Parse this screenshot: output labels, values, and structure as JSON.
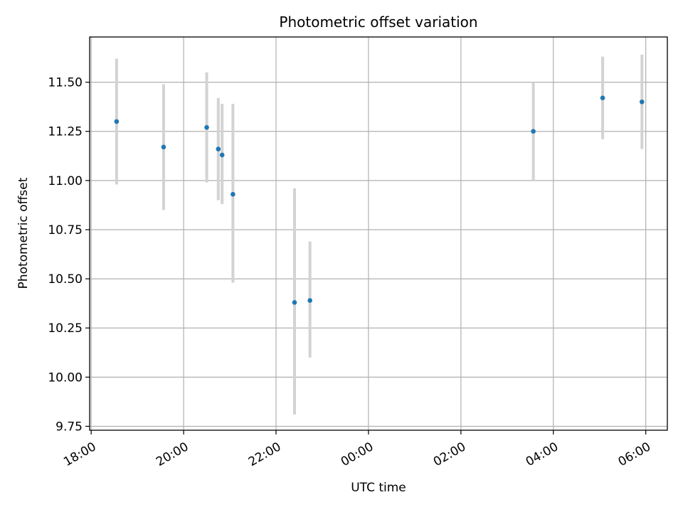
{
  "chart_data": {
    "type": "scatter",
    "title": "Photometric offset variation",
    "xlabel": "UTC time",
    "ylabel": "Photometric offset",
    "x_axis": "time",
    "xlim": [
      "17:58",
      "06:28"
    ],
    "ylim": [
      9.73,
      11.73
    ],
    "x_ticks": [
      "18:00",
      "20:00",
      "22:00",
      "00:00",
      "02:00",
      "04:00",
      "06:00"
    ],
    "y_ticks": [
      "9.75",
      "10.00",
      "10.25",
      "10.50",
      "10.75",
      "11.00",
      "11.25",
      "11.50"
    ],
    "grid": true,
    "x_tick_rotation": "30deg",
    "marker_color": "#1f77b4",
    "errorbar_color": "#d3d3d3",
    "points": [
      {
        "x": "18:33",
        "y": 11.3,
        "err_low": 10.98,
        "err_high": 11.62
      },
      {
        "x": "19:34",
        "y": 11.17,
        "err_low": 10.85,
        "err_high": 11.49
      },
      {
        "x": "20:30",
        "y": 11.27,
        "err_low": 10.99,
        "err_high": 11.55
      },
      {
        "x": "20:45",
        "y": 11.16,
        "err_low": 10.9,
        "err_high": 11.42
      },
      {
        "x": "20:50",
        "y": 11.13,
        "err_low": 10.88,
        "err_high": 11.39
      },
      {
        "x": "21:04",
        "y": 10.93,
        "err_low": 10.48,
        "err_high": 11.39
      },
      {
        "x": "22:24",
        "y": 10.38,
        "err_low": 9.81,
        "err_high": 10.96
      },
      {
        "x": "22:44",
        "y": 10.39,
        "err_low": 10.1,
        "err_high": 10.69
      },
      {
        "x": "03:34",
        "y": 11.25,
        "err_low": 11.0,
        "err_high": 11.5
      },
      {
        "x": "05:04",
        "y": 11.42,
        "err_low": 11.21,
        "err_high": 11.63
      },
      {
        "x": "05:55",
        "y": 11.4,
        "err_low": 11.16,
        "err_high": 11.64
      }
    ]
  }
}
